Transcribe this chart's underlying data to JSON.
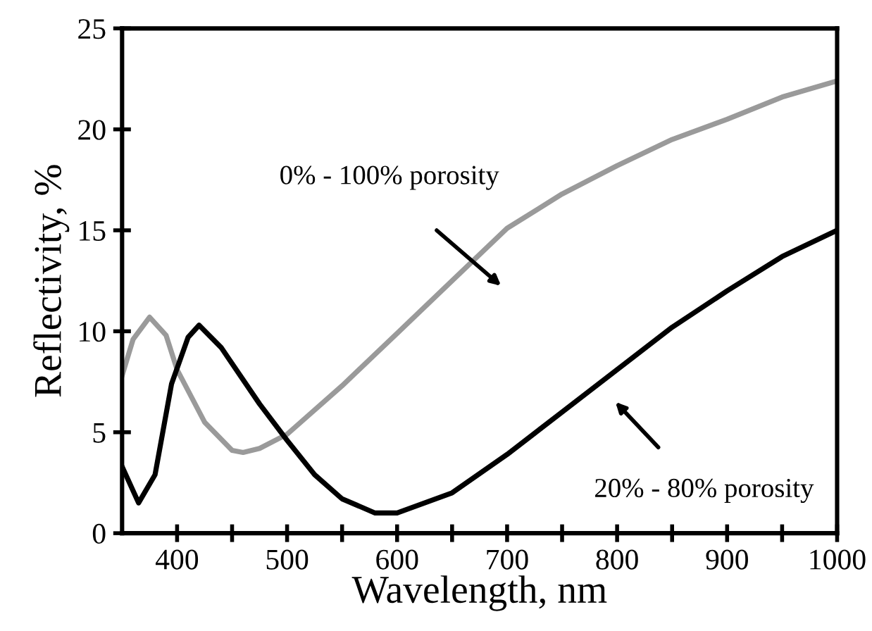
{
  "chart_data": {
    "type": "line",
    "xlabel": "Wavelength, nm",
    "ylabel": "Reflectivity, %",
    "xlim": [
      350,
      1000
    ],
    "ylim": [
      0,
      25
    ],
    "xticks": [
      400,
      {
        "value": 450,
        "label": null
      },
      500,
      {
        "value": 550,
        "label": null
      },
      600,
      {
        "value": 650,
        "label": null
      },
      700,
      {
        "value": 750,
        "label": null
      },
      800,
      {
        "value": 850,
        "label": null
      },
      900,
      {
        "value": 950,
        "label": null
      },
      1000
    ],
    "yticks": [
      0,
      5,
      10,
      15,
      20,
      25
    ],
    "grid": false,
    "legend": false,
    "marker": "none",
    "line_style": "solid",
    "series": [
      {
        "color": "#9a9a9a",
        "x": [
          350,
          360,
          375,
          390,
          400,
          425,
          450,
          460,
          475,
          500,
          550,
          600,
          650,
          700,
          750,
          800,
          850,
          900,
          950,
          1000
        ],
        "values": [
          7.8,
          9.6,
          10.7,
          9.8,
          8.1,
          5.5,
          4.1,
          4.0,
          4.2,
          4.9,
          7.3,
          9.9,
          12.5,
          15.1,
          16.8,
          18.2,
          19.5,
          20.5,
          21.6,
          22.4
        ]
      },
      {
        "color": "#000000",
        "x": [
          350,
          365,
          380,
          395,
          410,
          420,
          440,
          475,
          500,
          525,
          550,
          580,
          600,
          650,
          700,
          750,
          800,
          850,
          900,
          950,
          1000
        ],
        "values": [
          3.3,
          1.5,
          2.9,
          7.4,
          9.7,
          10.3,
          9.2,
          6.4,
          4.6,
          2.9,
          1.7,
          1.0,
          1.0,
          2.0,
          3.9,
          6.0,
          8.1,
          10.2,
          12.0,
          13.7,
          15.0
        ]
      }
    ],
    "annotations": [
      "0% - 100% porosity",
      "20% - 80% porosity"
    ]
  }
}
